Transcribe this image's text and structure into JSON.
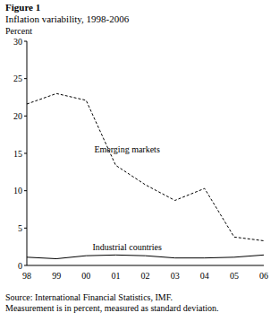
{
  "chart_data": {
    "type": "line",
    "title": "Figure 1",
    "subtitle": "Inflation variability, 1998-2006",
    "y_label": "Percent",
    "categories": [
      "98",
      "99",
      "00",
      "01",
      "02",
      "03",
      "04",
      "05",
      "06"
    ],
    "series": [
      {
        "name": "Emerging markets",
        "color": "#000000",
        "line_style": "dashed",
        "values": [
          21.6,
          23.0,
          22.1,
          13.4,
          10.8,
          8.7,
          10.3,
          3.8,
          3.3
        ]
      },
      {
        "name": "Industrial countries",
        "color": "#000000",
        "line_style": "solid",
        "values": [
          1.1,
          0.9,
          1.3,
          1.4,
          1.3,
          1.0,
          1.0,
          1.1,
          1.4
        ]
      }
    ],
    "ylim": [
      0,
      30
    ],
    "yticks": [
      0,
      5,
      10,
      15,
      20,
      25,
      30
    ],
    "grid": false,
    "annotations": [
      "Source: International Financial Statistics, IMF.",
      "Measurement is in percent, measured as standard deviation."
    ]
  }
}
